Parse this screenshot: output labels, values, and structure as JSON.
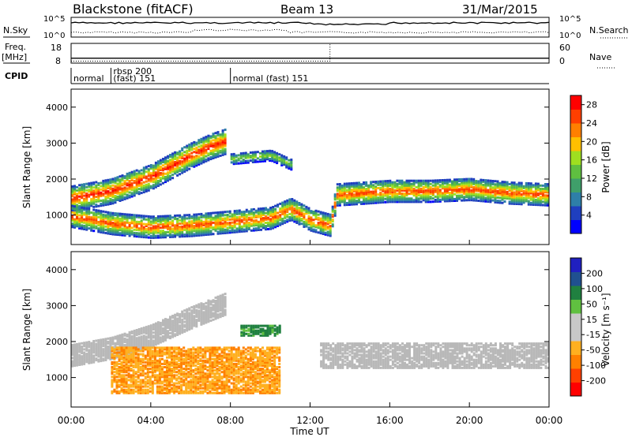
{
  "header": {
    "radar": "Blackstone (fitACF)",
    "beam": "Beam 13",
    "date": "31/Mar/2015"
  },
  "top_panels": {
    "nsky": {
      "left_label": "N.Sky",
      "right_label": "N.Search",
      "left_ticks": [
        "10^5",
        "10^0"
      ],
      "right_ticks": [
        "10^5",
        "10^0"
      ]
    },
    "freq": {
      "left_label_1": "Freq.",
      "left_label_2": "[MHz]",
      "right_label": "Nave",
      "left_ticks": [
        "18",
        "8"
      ],
      "right_ticks": [
        "60",
        "0"
      ],
      "freq_value_mhz": 10.5,
      "nave_before": 6,
      "nave_after": 60,
      "nave_step_hour": 13.0
    },
    "cpid": {
      "label": "CPID",
      "segments": [
        {
          "start_hour": 0.0,
          "label_1": "normal",
          "label_2": ""
        },
        {
          "start_hour": 2.0,
          "label_1": "rbsp 200",
          "label_2": "(fast)  151"
        },
        {
          "start_hour": 8.0,
          "label_1": "normal (fast)  151",
          "label_2": ""
        }
      ]
    }
  },
  "colors": {
    "power_scale": [
      "#0000ff",
      "#1f3fbf",
      "#2e7fa8",
      "#3f9f6a",
      "#5fbf40",
      "#9fdf20",
      "#ffbf00",
      "#ff7f00",
      "#ff3f00",
      "#ff0000"
    ],
    "velocity_scale": [
      "#ff0000",
      "#ff4000",
      "#ff8000",
      "#ffb020",
      "#c8c8c8",
      "#c8c8c8",
      "#60c040",
      "#208040",
      "#205090",
      "#2020c0"
    ],
    "ground_scatter": "#b8b8b8"
  },
  "chart_data": [
    {
      "type": "heatmap",
      "title": "",
      "xlabel": "Time UT",
      "ylabel": "Slant Range [km]",
      "x_range_hours": [
        0,
        24
      ],
      "y_range_km": [
        180,
        4500
      ],
      "x_ticks": [
        "00:00",
        "04:00",
        "08:00",
        "12:00",
        "16:00",
        "20:00",
        "00:00"
      ],
      "y_ticks": [
        1000,
        2000,
        3000,
        4000
      ],
      "colorbar": {
        "label": "Power [dB]",
        "ticks": [
          4,
          8,
          12,
          16,
          20,
          24,
          28
        ],
        "range": [
          0,
          30
        ]
      },
      "bands": [
        {
          "name": "main F-region band",
          "points_hour_km": [
            [
              0,
              1500
            ],
            [
              2,
              1700
            ],
            [
              4,
              2100
            ],
            [
              5,
              2400
            ],
            [
              6,
              2700
            ],
            [
              7,
              2950
            ],
            [
              7.8,
              3100
            ]
          ],
          "width_km": 350,
          "peak_db": 28
        },
        {
          "name": "lower band",
          "points_hour_km": [
            [
              0,
              1000
            ],
            [
              2,
              800
            ],
            [
              4,
              700
            ],
            [
              6,
              750
            ],
            [
              8,
              850
            ],
            [
              10,
              950
            ],
            [
              11,
              1200
            ],
            [
              12,
              900
            ],
            [
              13,
              750
            ],
            [
              13.3,
              1600
            ],
            [
              16,
              1700
            ],
            [
              18,
              1700
            ],
            [
              20,
              1750
            ],
            [
              22,
              1650
            ],
            [
              24,
              1600
            ]
          ],
          "width_km": 300,
          "peak_db": 26
        },
        {
          "name": "upper late band",
          "points_hour_km": [
            [
              8,
              2600
            ],
            [
              9,
              2650
            ],
            [
              10,
              2700
            ],
            [
              11,
              2450
            ]
          ],
          "width_km": 150,
          "peak_db": 16
        }
      ]
    },
    {
      "type": "heatmap",
      "title": "",
      "xlabel": "Time UT",
      "ylabel": "Slant Range [km]",
      "x_range_hours": [
        0,
        24
      ],
      "y_range_km": [
        180,
        4500
      ],
      "x_ticks": [
        "00:00",
        "04:00",
        "08:00",
        "12:00",
        "16:00",
        "20:00",
        "00:00"
      ],
      "y_ticks": [
        1000,
        2000,
        3000,
        4000
      ],
      "colorbar": {
        "label": "Velocity [m s⁻¹]",
        "ticks": [
          -200,
          -100,
          -50,
          -15,
          15,
          50,
          100,
          200
        ],
        "range": [
          -250,
          250
        ]
      },
      "regions": [
        {
          "name": "ground scatter band",
          "velocity": 0,
          "points_hour_km": [
            [
              0,
              1650
            ],
            [
              2,
              1850
            ],
            [
              4,
              2200
            ],
            [
              6,
              2700
            ],
            [
              7.8,
              3100
            ]
          ],
          "width_km": 300
        },
        {
          "name": "ionospheric flow",
          "velocity": -45,
          "hour_range": [
            2,
            10.5
          ],
          "km_range": [
            600,
            1900
          ]
        },
        {
          "name": "late ground scatter",
          "velocity": 0,
          "hour_range": [
            12.5,
            24
          ],
          "km_range": [
            1300,
            2000
          ]
        },
        {
          "name": "positive flow patch",
          "velocity": 110,
          "hour_range": [
            8.5,
            10.5
          ],
          "km_range": [
            2200,
            2500
          ]
        }
      ]
    }
  ]
}
